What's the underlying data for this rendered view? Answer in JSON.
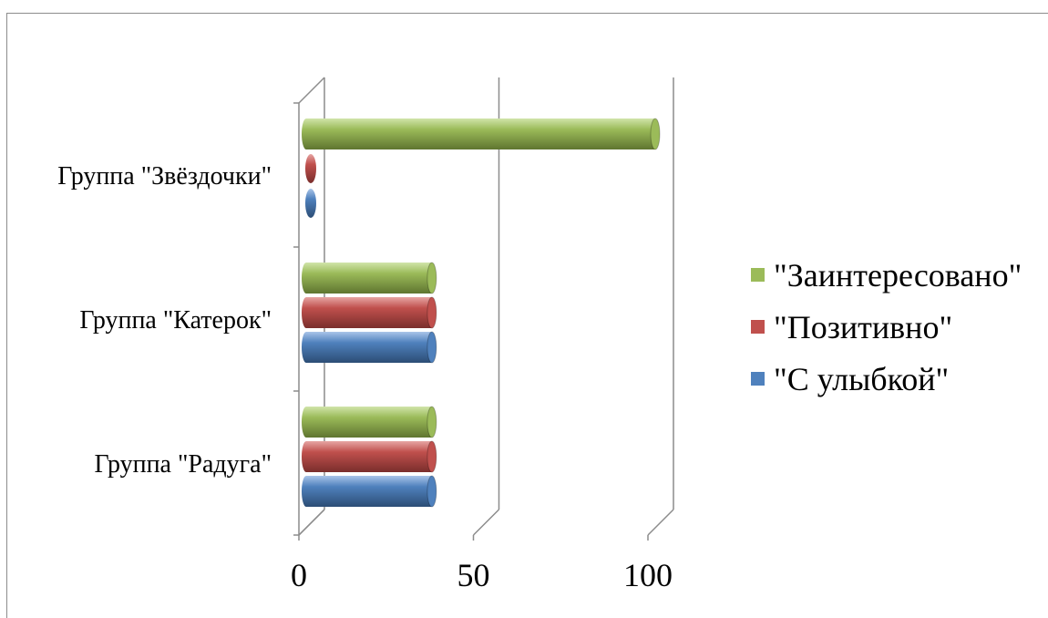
{
  "chart_data": {
    "type": "bar",
    "orientation": "horizontal",
    "style": "3d-cylinder",
    "categories": [
      "Группа \"Радуга\"",
      "Группа \"Катерок\"",
      "Группа \"Звёздочки\""
    ],
    "series": [
      {
        "name": "\"С улыбкой\"",
        "color": "#4f81bd",
        "values": [
          36,
          36,
          1
        ]
      },
      {
        "name": "\"Позитивно\"",
        "color": "#c0504d",
        "values": [
          36,
          36,
          1
        ]
      },
      {
        "name": "\"Заинтересовано\"",
        "color": "#9bbb59",
        "values": [
          36,
          36,
          100
        ]
      }
    ],
    "x_ticks": [
      0,
      50,
      100
    ],
    "xlim": [
      0,
      100
    ],
    "grid": true,
    "legend_position": "right"
  }
}
